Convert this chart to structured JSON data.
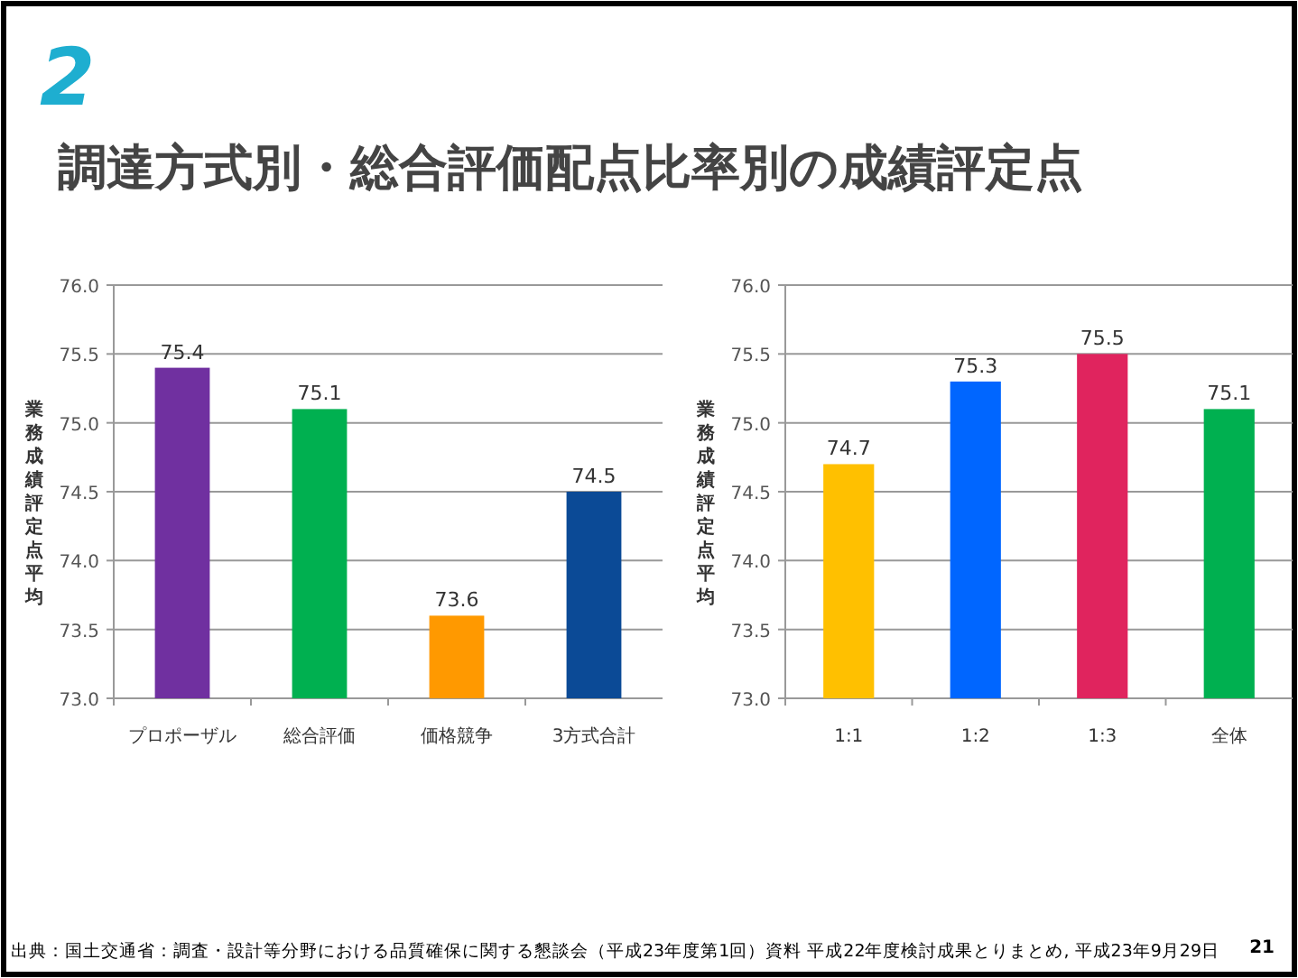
{
  "chart_data": [
    {
      "type": "bar",
      "title": "調達方式別・総合評価配点比率別の成績評定点",
      "ylabel": "業務成績評定点平均",
      "categories": [
        "プロポーザル",
        "総合評価",
        "価格競争",
        "3方式合計"
      ],
      "values": [
        75.4,
        75.1,
        73.6,
        74.5
      ],
      "colors": [
        "#7030a0",
        "#00b050",
        "#ff9900",
        "#0b4a96"
      ],
      "ylim": [
        73,
        76
      ],
      "yticks": [
        {
          "value": 73,
          "label": "73.0"
        },
        {
          "value": 73.5,
          "label": "73.5"
        },
        {
          "value": 74,
          "label": "74.0"
        },
        {
          "value": 74.5,
          "label": "74.5"
        },
        {
          "value": 75,
          "label": "75.0"
        },
        {
          "value": 75.5,
          "label": "75.5"
        },
        {
          "value": 76,
          "label": "76.0"
        }
      ],
      "grid": "y",
      "data_labels": true,
      "annotations": [
        "2"
      ]
    },
    {
      "type": "bar",
      "ylabel": "業務成績評定点平均",
      "categories": [
        "1:1",
        "1:2",
        "1:3",
        "全体"
      ],
      "values": [
        74.7,
        75.3,
        75.5,
        75.1
      ],
      "colors": [
        "#ffc000",
        "#0066ff",
        "#e0245e",
        "#00b050"
      ],
      "ylim": [
        73,
        76
      ],
      "yticks": [
        {
          "value": 73,
          "label": "73.0"
        },
        {
          "value": 73.5,
          "label": "73.5"
        },
        {
          "value": 74,
          "label": "74.0"
        },
        {
          "value": 74.5,
          "label": "74.5"
        },
        {
          "value": 75,
          "label": "75.0"
        },
        {
          "value": 75.5,
          "label": "75.5"
        },
        {
          "value": 76,
          "label": "76.0"
        }
      ],
      "grid": "y",
      "data_labels": true,
      "annotations": [
        "出典：国土交通省：調査・設計等分野における品質確保に関する懇談会（平成23年度第1回）資料 平成22年度検討成果とりまとめ, 平成23年9月29日",
        "21"
      ]
    }
  ]
}
